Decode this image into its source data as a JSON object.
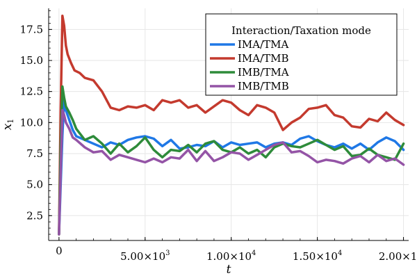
{
  "chart_data": {
    "type": "line",
    "title": "",
    "xlabel": "t",
    "ylabel": "x",
    "ylabel_sub": "1",
    "xlim": [
      -600,
      20300
    ],
    "ylim": [
      0.5,
      19.2
    ],
    "grid": true,
    "x_ticks": [
      {
        "value": 0,
        "mant": "0",
        "exp": ""
      },
      {
        "value": 5000,
        "mant": "5.00×10",
        "exp": "3"
      },
      {
        "value": 10000,
        "mant": "1.00×10",
        "exp": "4"
      },
      {
        "value": 15000,
        "mant": "1.50×10",
        "exp": "4"
      },
      {
        "value": 20000,
        "mant": "2.00×10",
        "exp": "4"
      }
    ],
    "y_ticks": [
      2.5,
      5.0,
      7.5,
      10.0,
      12.5,
      15.0,
      17.5
    ],
    "y_tick_labels": [
      "2.5",
      "5.0",
      "7.5",
      "10.0",
      "12.5",
      "15.0",
      "17.5"
    ],
    "legend": {
      "title": "Interaction/Taxation mode",
      "placement": "top-right"
    },
    "series": [
      {
        "name": "IMA/TMA",
        "color": "#1f78e6",
        "x": [
          0,
          100,
          200,
          300,
          400,
          600,
          800,
          1000,
          1500,
          2000,
          2500,
          3000,
          3500,
          4000,
          4500,
          5000,
          5500,
          6000,
          6500,
          7000,
          7500,
          8000,
          8500,
          9000,
          9500,
          10000,
          10500,
          11000,
          11500,
          12000,
          12500,
          13000,
          13500,
          14000,
          14500,
          15000,
          15500,
          16000,
          16500,
          17000,
          17500,
          18000,
          18500,
          19000,
          19500,
          20000
        ],
        "values": [
          1.0,
          5.0,
          9.0,
          11.8,
          11.0,
          10.2,
          9.4,
          8.9,
          8.6,
          8.3,
          8.0,
          8.4,
          8.2,
          8.6,
          8.8,
          8.9,
          8.7,
          8.1,
          8.6,
          7.9,
          8.0,
          8.2,
          8.1,
          8.5,
          8.0,
          8.4,
          8.2,
          8.3,
          8.4,
          8.0,
          8.3,
          8.4,
          8.2,
          8.7,
          8.9,
          8.5,
          8.2,
          8.0,
          8.3,
          7.9,
          8.3,
          7.8,
          8.4,
          8.8,
          8.5,
          7.8
        ]
      },
      {
        "name": "IMA/TMB",
        "color": "#c43a2e",
        "x": [
          0,
          100,
          200,
          300,
          400,
          500,
          700,
          900,
          1200,
          1500,
          2000,
          2500,
          3000,
          3500,
          4000,
          4500,
          5000,
          5500,
          6000,
          6500,
          7000,
          7500,
          8000,
          8500,
          9000,
          9500,
          10000,
          10500,
          11000,
          11500,
          12000,
          12500,
          13000,
          13500,
          14000,
          14500,
          15000,
          15500,
          16000,
          16500,
          17000,
          17500,
          18000,
          18500,
          19000,
          19500,
          20000
        ],
        "values": [
          1.0,
          11.0,
          18.6,
          17.8,
          16.2,
          15.5,
          14.8,
          14.2,
          14.0,
          13.6,
          13.4,
          12.5,
          11.2,
          11.0,
          11.3,
          11.2,
          11.4,
          11.0,
          11.8,
          11.6,
          11.8,
          11.2,
          11.4,
          10.8,
          11.3,
          11.8,
          11.6,
          11.0,
          10.6,
          11.4,
          11.2,
          10.8,
          9.4,
          10.0,
          10.4,
          11.1,
          11.2,
          11.4,
          10.6,
          10.4,
          9.7,
          9.6,
          10.3,
          10.1,
          10.8,
          10.2,
          9.8
        ]
      },
      {
        "name": "IMB/TMA",
        "color": "#2e8b3a",
        "x": [
          0,
          100,
          200,
          300,
          400,
          600,
          800,
          1000,
          1500,
          2000,
          2500,
          3000,
          3500,
          4000,
          4500,
          5000,
          5500,
          6000,
          6500,
          7000,
          7500,
          8000,
          8500,
          9000,
          9500,
          10000,
          10500,
          11000,
          11500,
          12000,
          12500,
          13000,
          13500,
          14000,
          14500,
          15000,
          15500,
          16000,
          16500,
          17000,
          17500,
          18000,
          18500,
          19000,
          19500,
          20000
        ],
        "values": [
          1.0,
          8.0,
          12.9,
          12.0,
          11.3,
          10.8,
          10.2,
          9.5,
          8.6,
          8.9,
          8.3,
          7.5,
          8.3,
          7.6,
          8.1,
          8.8,
          7.8,
          7.2,
          7.8,
          7.7,
          8.2,
          7.6,
          8.3,
          8.5,
          7.8,
          7.6,
          8.0,
          7.5,
          7.8,
          7.2,
          8.0,
          8.3,
          8.1,
          8.0,
          8.3,
          8.6,
          8.2,
          7.8,
          8.1,
          7.3,
          7.4,
          7.9,
          7.4,
          7.2,
          7.0,
          8.3
        ]
      },
      {
        "name": "IMB/TMB",
        "color": "#9454a6",
        "x": [
          0,
          100,
          200,
          300,
          400,
          600,
          800,
          1000,
          1500,
          2000,
          2500,
          3000,
          3500,
          4000,
          4500,
          5000,
          5500,
          6000,
          6500,
          7000,
          7500,
          8000,
          8500,
          9000,
          9500,
          10000,
          10500,
          11000,
          11500,
          12000,
          12500,
          13000,
          13500,
          14000,
          14500,
          15000,
          15500,
          16000,
          16500,
          17000,
          17500,
          18000,
          18500,
          19000,
          19500,
          20000
        ],
        "values": [
          1.0,
          6.0,
          11.0,
          10.6,
          10.0,
          9.5,
          8.8,
          8.6,
          8.0,
          7.6,
          7.7,
          7.0,
          7.4,
          7.2,
          7.0,
          6.8,
          7.1,
          6.8,
          7.2,
          7.1,
          7.8,
          6.9,
          7.7,
          6.9,
          7.2,
          7.6,
          7.5,
          7.0,
          7.4,
          7.8,
          8.2,
          8.4,
          7.6,
          7.7,
          7.3,
          6.8,
          7.0,
          6.9,
          6.7,
          7.1,
          7.3,
          6.8,
          7.4,
          6.9,
          7.1,
          6.6
        ]
      }
    ]
  }
}
